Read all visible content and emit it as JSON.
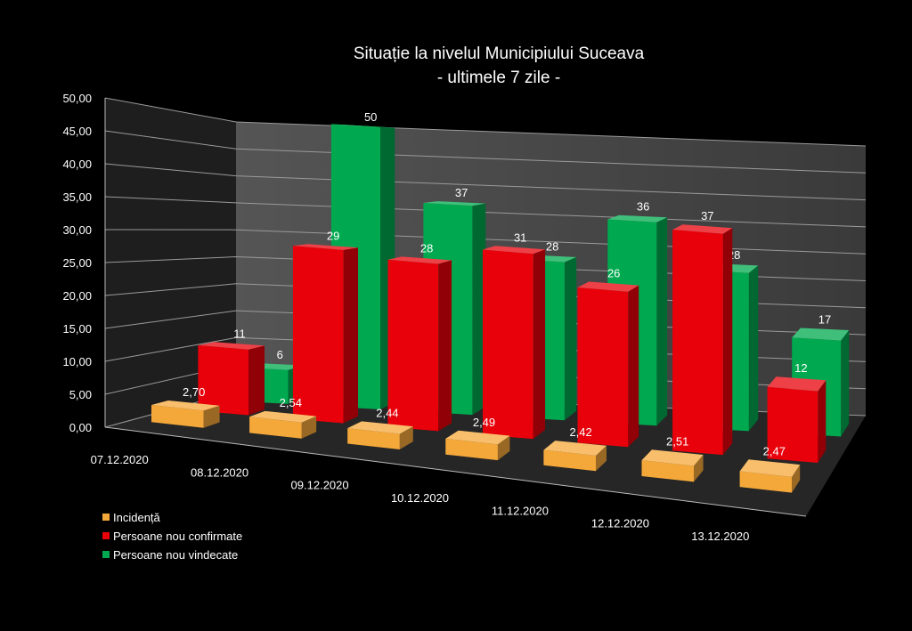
{
  "chart_data": {
    "type": "bar",
    "title": "Situație la nivelul Municipiului Suceava",
    "subtitle": "- ultimele 7 zile -",
    "categories": [
      "07.12.2020",
      "08.12.2020",
      "09.12.2020",
      "10.12.2020",
      "11.12.2020",
      "12.12.2020",
      "13.12.2020"
    ],
    "y_ticks": [
      "0,00",
      "5,00",
      "10,00",
      "15,00",
      "20,00",
      "25,00",
      "30,00",
      "35,00",
      "40,00",
      "45,00",
      "50,00"
    ],
    "ylim": [
      0,
      50
    ],
    "grid": true,
    "legend_position": "bottom-left",
    "series": [
      {
        "name": "Incidență",
        "color": "#F5A83A",
        "values": [
          2.7,
          2.54,
          2.44,
          2.49,
          2.42,
          2.51,
          2.47
        ],
        "labels": [
          "2,70",
          "2,54",
          "2,44",
          "2,49",
          "2,42",
          "2,51",
          "2,47"
        ]
      },
      {
        "name": "Persoane nou confirmate",
        "color": "#E8000A",
        "values": [
          11,
          29,
          28,
          31,
          26,
          37,
          12
        ],
        "labels": [
          "11",
          "29",
          "28",
          "31",
          "26",
          "37",
          "12"
        ]
      },
      {
        "name": "Persoane nou vindecate",
        "color": "#00A94F",
        "values": [
          6,
          50,
          37,
          28,
          36,
          28,
          17
        ],
        "labels": [
          "6",
          "50",
          "37",
          "28",
          "36",
          "28",
          "17"
        ]
      }
    ]
  }
}
